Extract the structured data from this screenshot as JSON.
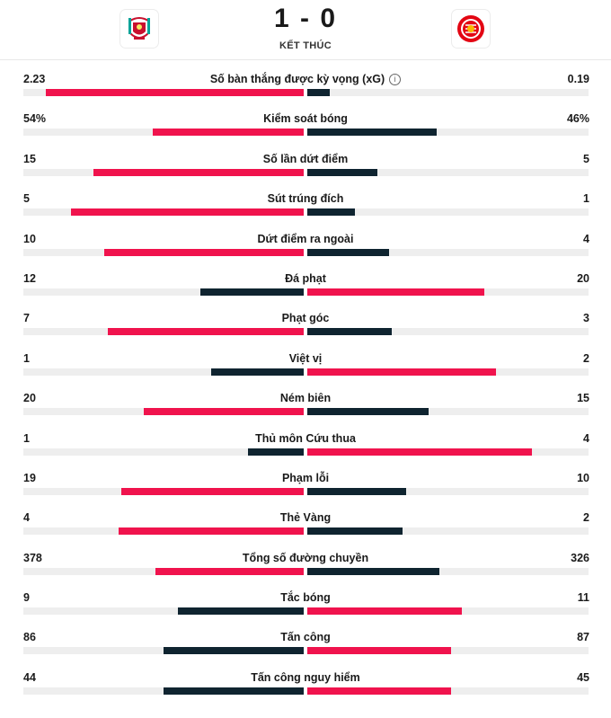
{
  "match": {
    "home_logo": "liverpool-crest",
    "away_logo": "brentford-crest",
    "score": "1 - 0",
    "status": "KẾT THÚC"
  },
  "colors": {
    "leader": "#f0134d",
    "trailer": "#0f2430",
    "track": "#eeeeee"
  },
  "stats": [
    {
      "label": "Số bàn thắng được kỳ vọng (xG)",
      "home": "2.23",
      "away": "0.19",
      "home_frac": 0.92,
      "away_frac": 0.08,
      "info": "i"
    },
    {
      "label": "Kiểm soát bóng",
      "home": "54%",
      "away": "46%",
      "home_frac": 0.54,
      "away_frac": 0.46
    },
    {
      "label": "Số lần dứt điểm",
      "home": "15",
      "away": "5",
      "home_frac": 0.75,
      "away_frac": 0.25
    },
    {
      "label": "Sút trúng đích",
      "home": "5",
      "away": "1",
      "home_frac": 0.83,
      "away_frac": 0.17
    },
    {
      "label": "Dứt điểm ra ngoài",
      "home": "10",
      "away": "4",
      "home_frac": 0.71,
      "away_frac": 0.29
    },
    {
      "label": "Đá phạt",
      "home": "12",
      "away": "20",
      "home_frac": 0.37,
      "away_frac": 0.63
    },
    {
      "label": "Phạt góc",
      "home": "7",
      "away": "3",
      "home_frac": 0.7,
      "away_frac": 0.3
    },
    {
      "label": "Việt vị",
      "home": "1",
      "away": "2",
      "home_frac": 0.33,
      "away_frac": 0.67
    },
    {
      "label": "Ném biên",
      "home": "20",
      "away": "15",
      "home_frac": 0.57,
      "away_frac": 0.43
    },
    {
      "label": "Thủ môn Cứu thua",
      "home": "1",
      "away": "4",
      "home_frac": 0.2,
      "away_frac": 0.8
    },
    {
      "label": "Phạm lỗi",
      "home": "19",
      "away": "10",
      "home_frac": 0.65,
      "away_frac": 0.35
    },
    {
      "label": "Thẻ Vàng",
      "home": "4",
      "away": "2",
      "home_frac": 0.66,
      "away_frac": 0.34
    },
    {
      "label": "Tổng số đường chuyền",
      "home": "378",
      "away": "326",
      "home_frac": 0.53,
      "away_frac": 0.47
    },
    {
      "label": "Tắc bóng",
      "home": "9",
      "away": "11",
      "home_frac": 0.45,
      "away_frac": 0.55
    },
    {
      "label": "Tấn công",
      "home": "86",
      "away": "87",
      "home_frac": 0.5,
      "away_frac": 0.51
    },
    {
      "label": "Tấn công nguy hiểm",
      "home": "44",
      "away": "45",
      "home_frac": 0.5,
      "away_frac": 0.51
    }
  ]
}
